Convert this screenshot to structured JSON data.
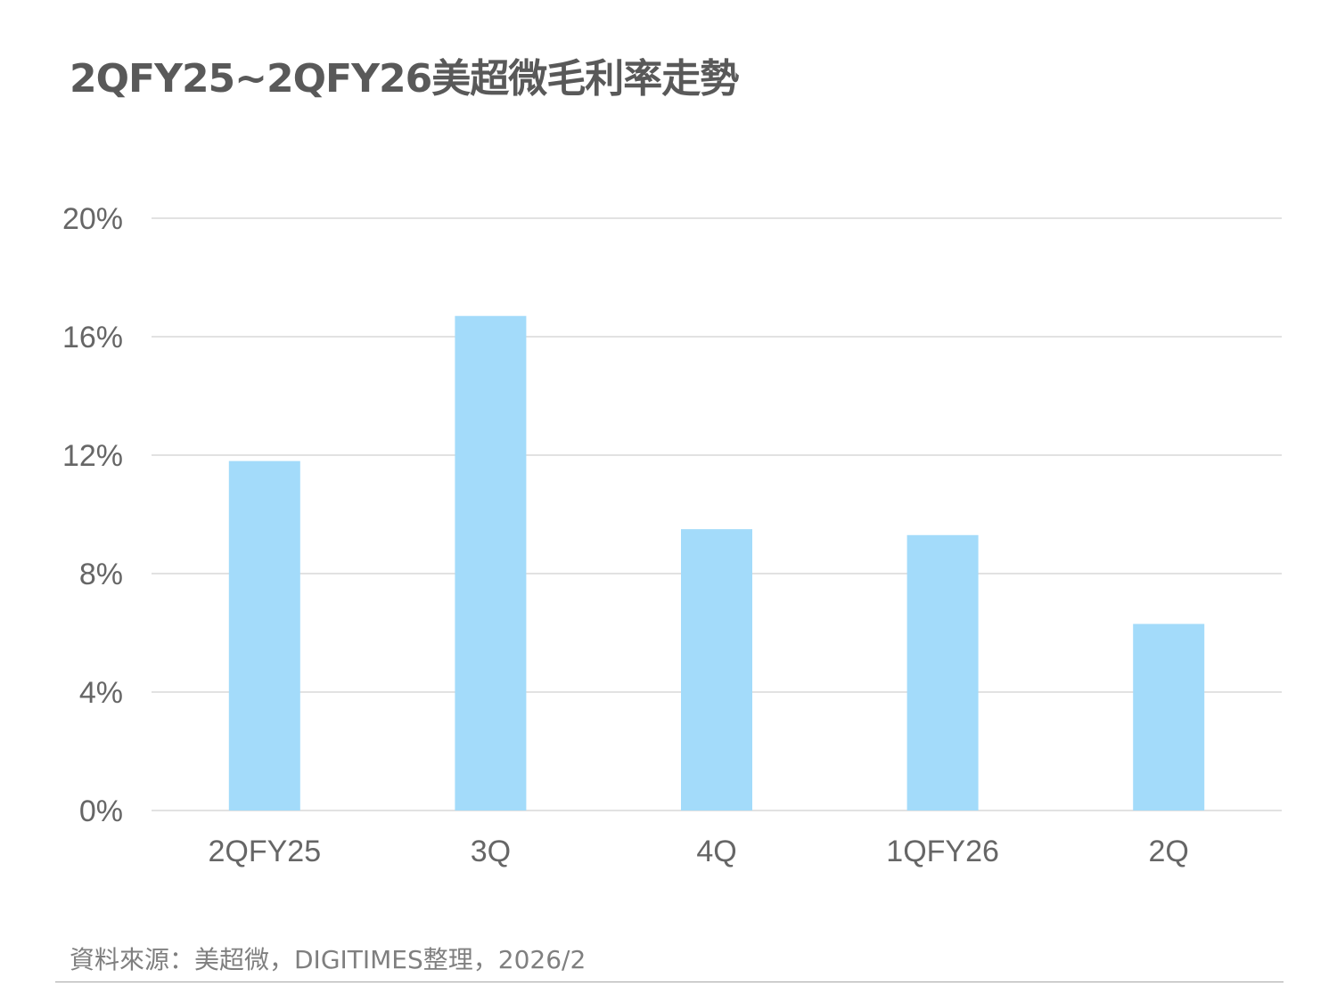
{
  "title": "2QFY25~2QFY26美超微毛利率走勢",
  "source": "資料來源：美超微，DIGITIMES整理，2026/2",
  "chart_data": {
    "type": "bar",
    "title": "2QFY25~2QFY26美超微毛利率走勢",
    "categories": [
      "2QFY25",
      "3Q",
      "4Q",
      "1QFY26",
      "2Q"
    ],
    "values": [
      11.8,
      16.7,
      9.5,
      9.3,
      6.3
    ],
    "unit": "%",
    "xlabel": "",
    "ylabel": "",
    "ylim": [
      0,
      20
    ],
    "yticks": [
      0,
      4,
      8,
      12,
      16,
      20
    ],
    "ytick_labels": [
      "0%",
      "4%",
      "8%",
      "12%",
      "16%",
      "20%"
    ],
    "grid": true,
    "legend": "none",
    "colors": {
      "bar": "#a3dbfa",
      "grid": "#d9d9d9",
      "text": "#666666"
    }
  }
}
